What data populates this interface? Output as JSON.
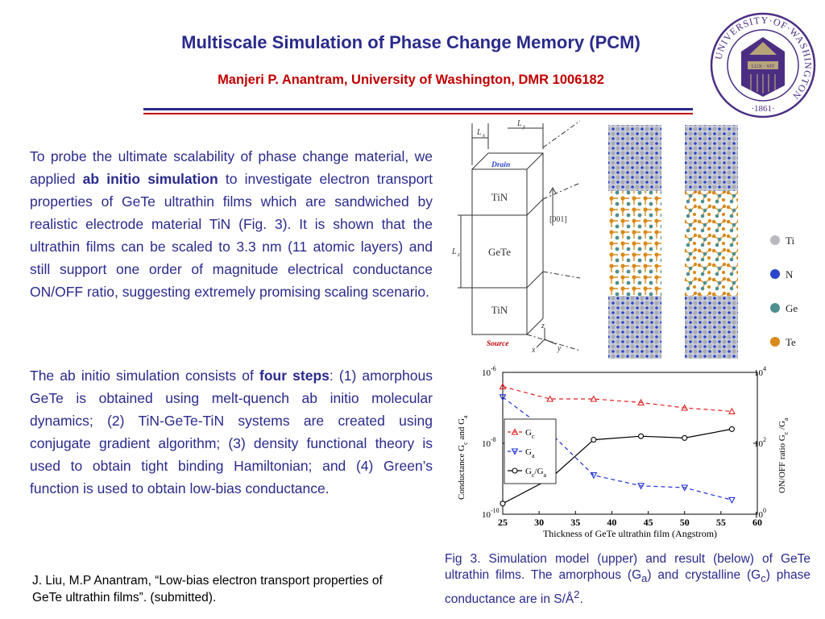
{
  "header": {
    "title": "Multiscale Simulation of Phase Change Memory (PCM)",
    "subtitle": "Manjeri P. Anantram, University of Washington, DMR 1006182",
    "accent": "#2a2a8c",
    "red": "#c00000"
  },
  "seal": {
    "ring_text": "UNIVERSITY·OF·WASHINGTON",
    "year": "·1861·",
    "banner": "LUX · SIT"
  },
  "body": {
    "p1_a": "To probe the ultimate scalability of phase change material, we applied ",
    "p1_bold": "ab initio simulation",
    "p1_b": " to investigate electron transport properties of GeTe ultrathin films which are sandwiched by realistic electrode material TiN (Fig. 3). It is shown that the ultrathin films can be scaled to 3.3 nm (11 atomic layers) and still support one order of magnitude electrical conductance ON/OFF ratio, suggesting extremely promising scaling scenario.",
    "p2_a": "The ab initio simulation consists of ",
    "p2_bold": "four steps",
    "p2_b": ": (1) amorphous GeTe is obtained using melt-quench ab initio molecular dynamics; (2) TiN-GeTe-TiN systems are created using conjugate gradient algorithm; (3) density functional theory is used to obtain tight binding Hamiltonian; and (4) Green’s function is used to obtain low-bias conductance."
  },
  "reference": "J. Liu, M.P Anantram, “Low-bias electron transport properties of GeTe ultrathin films”. (submitted).",
  "caption": {
    "a": "Fig 3. Simulation model (upper) and result (below) of GeTe ultrathin films. The amorphous (G",
    "sub_a": "a",
    "b": ") and crystalline (G",
    "sub_c": "c",
    "c": ") phase conductance are in S/Å",
    "sup": "2",
    "d": "."
  },
  "model": {
    "lx": "L",
    "lx_sub": "x",
    "ly": "L",
    "ly_sub": "y",
    "lz": "L",
    "lz_sub": "z",
    "drain": "Drain",
    "source": "Source",
    "layer_top": "TiN",
    "layer_mid": "GeTe",
    "layer_bot": "TiN",
    "direction": "[001]",
    "axis_z": "z",
    "axis_x": "x",
    "axis_y": "y",
    "legend": [
      {
        "label": "Ti",
        "color": "#b9b9c0"
      },
      {
        "label": "N",
        "color": "#2a45c8"
      },
      {
        "label": "Ge",
        "color": "#4f8f8f"
      },
      {
        "label": "Te",
        "color": "#d88a1a"
      }
    ]
  },
  "chart_data": {
    "type": "line",
    "x": [
      25,
      31.5,
      37.5,
      44,
      50,
      56.5
    ],
    "xlim": [
      25,
      60
    ],
    "xticks": [
      "25",
      "30",
      "35",
      "40",
      "45",
      "50",
      "55",
      "60"
    ],
    "xlabel": "Thickness of GeTe ultrathin film (Angstrom)",
    "ylabel_left": "Conductance G",
    "ylabel_left_sub1": "c",
    "ylabel_left_mid": " and G",
    "ylabel_left_sub2": "a",
    "ylabel_right": "ON/OFF ratio G",
    "ylabel_right_sub1": "c",
    "ylabel_right_mid": " /G",
    "ylabel_right_sub2": "a",
    "left_log_range": [
      -10,
      -6
    ],
    "right_log_range": [
      0,
      4
    ],
    "yticks_left": [
      {
        "base": "10",
        "exp": "-6"
      },
      {
        "base": "10",
        "exp": "-8"
      },
      {
        "base": "10",
        "exp": "-10"
      }
    ],
    "yticks_right": [
      {
        "base": "10",
        "exp": "4"
      },
      {
        "base": "10",
        "exp": "2"
      },
      {
        "base": "10",
        "exp": "0"
      }
    ],
    "legend_placement": "left-middle",
    "series": [
      {
        "name": "G",
        "sub": "c",
        "axis": "left",
        "color": "#e02020",
        "dash": "5,4",
        "marker": "triangle-up",
        "log_values": [
          -6.4,
          -6.75,
          -6.75,
          -6.85,
          -7.0,
          -7.1
        ]
      },
      {
        "name": "G",
        "sub": "a",
        "axis": "left",
        "color": "#2030d0",
        "dash": "5,4",
        "marker": "triangle-down",
        "log_values": [
          -6.7,
          -7.7,
          -8.9,
          -9.2,
          -9.25,
          -9.6
        ]
      },
      {
        "name": "G",
        "sub": "c",
        "mid": "/G",
        "sub2": "a",
        "axis": "right",
        "color": "#000000",
        "dash": "",
        "marker": "circle",
        "log_values": [
          0.3,
          1.0,
          2.1,
          2.2,
          2.15,
          2.4
        ]
      }
    ]
  }
}
